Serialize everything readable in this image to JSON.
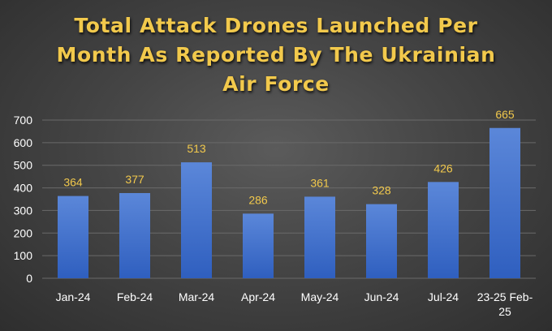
{
  "chart_data": {
    "type": "bar",
    "title_lines": [
      "Total Attack Drones Launched Per",
      "Month As Reported By The Ukrainian",
      "Air Force"
    ],
    "categories": [
      "Jan-24",
      "Feb-24",
      "Mar-24",
      "Apr-24",
      "May-24",
      "Jun-24",
      "Jul-24",
      "23-25 Feb-25"
    ],
    "category_lines": [
      [
        "Jan-24"
      ],
      [
        "Feb-24"
      ],
      [
        "Mar-24"
      ],
      [
        "Apr-24"
      ],
      [
        "May-24"
      ],
      [
        "Jun-24"
      ],
      [
        "Jul-24"
      ],
      [
        "23-25 Feb-",
        "25"
      ]
    ],
    "values": [
      364,
      377,
      513,
      286,
      361,
      328,
      426,
      665
    ],
    "xlabel": "",
    "ylabel": "",
    "ylim": [
      0,
      700
    ],
    "yticks": [
      0,
      100,
      200,
      300,
      400,
      500,
      600,
      700
    ],
    "grid": true,
    "data_labels": true,
    "legend": "none",
    "colors": {
      "bar_top": "#5b87d9",
      "bar_bottom": "#2f5fbf",
      "title": "#f2c94c",
      "data_label": "#f2c94c",
      "axis_text": "#ffffff",
      "grid": "#6a6a6a"
    }
  }
}
